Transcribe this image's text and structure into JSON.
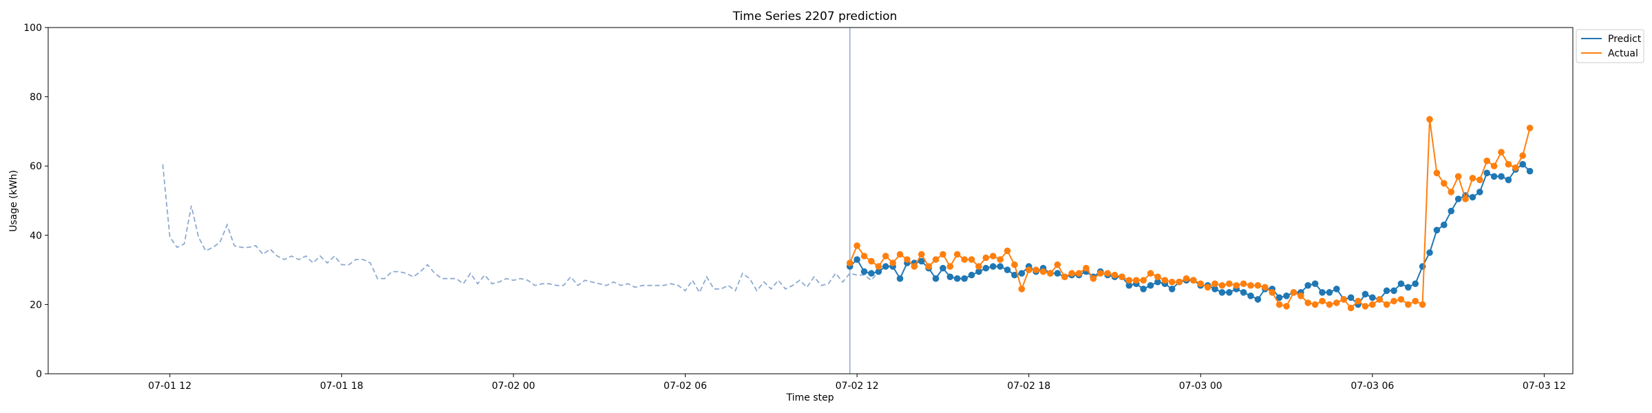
{
  "chart_data": {
    "type": "line",
    "title": "Time Series 2207 prediction",
    "xlabel": "Time step",
    "ylabel": "Usage (kWh)",
    "ylim": [
      0,
      100
    ],
    "xlim": [
      "2021-07-01 07:45",
      "2021-07-03 13:00"
    ],
    "x_tick_labels": [
      "07-01 12",
      "07-01 18",
      "07-02 00",
      "07-02 06",
      "07-02 12",
      "07-02 18",
      "07-03 00",
      "07-03 06",
      "07-03 12"
    ],
    "x_ticks": [
      "2021-07-01 12:00",
      "2021-07-01 18:00",
      "2021-07-02 00:00",
      "2021-07-02 06:00",
      "2021-07-02 12:00",
      "2021-07-02 18:00",
      "2021-07-03 00:00",
      "2021-07-03 06:00",
      "2021-07-03 12:00"
    ],
    "y_ticks": [
      0,
      20,
      40,
      60,
      80,
      100
    ],
    "grid": false,
    "legend_position": "outside top-right",
    "vertical_marker": "2021-07-02 11:45",
    "colors": {
      "predict": "#1f77b4",
      "actual": "#ff7f0e",
      "history": "#8ea9cf",
      "marker_line": "#8ea9cf"
    },
    "history": {
      "start": "2021-07-01 11:45",
      "step_minutes": 15,
      "style": "dashed",
      "values": [
        60.5,
        39.5,
        36.5,
        37.5,
        48.5,
        39.5,
        35.5,
        36.5,
        38,
        43,
        37,
        36.5,
        36.5,
        37,
        34.5,
        36,
        34,
        33,
        34,
        33,
        34,
        32,
        34,
        32,
        34,
        31.5,
        31.5,
        33,
        33,
        32,
        27.5,
        27.5,
        29.5,
        29.5,
        29,
        28,
        29.5,
        31.5,
        29,
        27.5,
        27.5,
        27.5,
        26,
        29,
        26,
        28.5,
        26,
        26.5,
        27.5,
        27,
        27.5,
        27,
        25.5,
        26,
        26,
        25.5,
        25.5,
        28,
        25.5,
        27,
        26.5,
        26,
        25.5,
        26.5,
        25.5,
        26,
        25,
        25.5,
        25.5,
        25.5,
        25.5,
        26,
        25.5,
        24,
        27,
        23.5,
        28,
        24.5,
        24.5,
        25.5,
        24,
        29,
        27.5,
        24,
        26.5,
        24.5,
        27,
        24.5,
        25.5,
        27,
        25,
        28,
        25.5,
        26,
        29,
        26.5,
        29,
        28.5,
        28.5,
        27,
        29.5,
        32
      ]
    },
    "series": [
      {
        "name": "Predict",
        "start": "2021-07-02 11:45",
        "step_minutes": 15,
        "marker": "circle",
        "values": [
          31,
          33,
          29.5,
          29,
          29.5,
          31,
          31,
          27.5,
          32,
          32,
          32.5,
          30.5,
          27.5,
          30.5,
          28,
          27.5,
          27.5,
          28.5,
          29.5,
          30.5,
          31,
          31,
          30,
          28.5,
          29,
          31,
          29.5,
          30.5,
          29,
          29,
          28,
          28.5,
          28.5,
          29.5,
          28,
          29.5,
          28.5,
          28,
          28,
          25.5,
          26,
          24.5,
          25.5,
          26.5,
          26,
          24.5,
          26.5,
          27,
          27,
          25.5,
          25.5,
          24.5,
          23.5,
          23.5,
          24.5,
          23.5,
          22.5,
          21.5,
          24.5,
          24.5,
          22,
          22.5,
          23.5,
          23.5,
          25.5,
          26,
          23.5,
          23.5,
          24.5,
          21.5,
          22,
          20,
          23,
          22,
          21.5,
          24,
          24,
          26,
          25,
          26,
          31,
          35,
          41.5,
          43,
          47,
          50.5,
          51.5,
          51,
          52.5,
          58,
          57,
          57,
          56,
          59,
          60.5,
          58.5
        ]
      },
      {
        "name": "Actual",
        "start": "2021-07-02 11:45",
        "step_minutes": 15,
        "marker": "circle",
        "values": [
          32,
          37,
          34,
          32.5,
          31,
          34,
          32,
          34.5,
          33,
          31,
          34.5,
          31,
          33,
          34.5,
          31,
          34.5,
          33,
          33,
          31,
          33.5,
          34,
          33,
          35.5,
          31.5,
          24.5,
          30,
          30,
          29.5,
          29,
          31.5,
          28,
          29,
          29,
          30.5,
          27.5,
          29,
          29,
          28.5,
          28,
          27,
          27,
          27,
          29,
          28,
          27,
          26.5,
          26.5,
          27.5,
          27,
          26,
          25,
          26,
          25.5,
          26,
          25.5,
          26,
          25.5,
          25.5,
          25,
          23.5,
          20,
          19.5,
          23.5,
          22.5,
          20.5,
          20,
          21,
          20,
          20.5,
          21.5,
          19,
          21,
          19.5,
          20,
          21.5,
          20,
          21,
          21.5,
          20,
          21,
          20,
          73.5,
          58,
          55,
          52.5,
          57,
          50.5,
          56.5,
          56,
          61.5,
          60,
          64,
          60.5,
          59.5,
          63,
          71
        ]
      }
    ]
  }
}
